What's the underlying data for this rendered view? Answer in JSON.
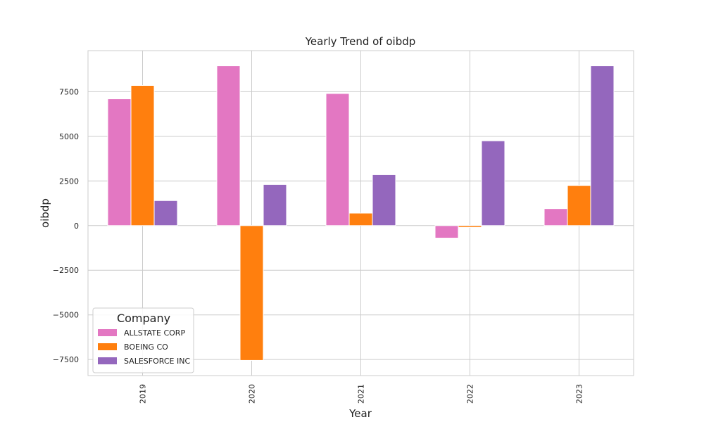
{
  "chart_data": {
    "type": "bar",
    "title": "Yearly Trend of oibdp",
    "xlabel": "Year",
    "ylabel": "oibdp",
    "categories": [
      "2019",
      "2020",
      "2021",
      "2022",
      "2023"
    ],
    "series": [
      {
        "name": "ALLSTATE CORP",
        "color": "#e377c2",
        "values": [
          7100,
          8950,
          7400,
          -700,
          950
        ]
      },
      {
        "name": "BOEING CO",
        "color": "#ff7f0e",
        "values": [
          7850,
          -7550,
          700,
          -100,
          2250
        ]
      },
      {
        "name": "SALESFORCE INC",
        "color": "#9467bd",
        "values": [
          1400,
          2300,
          2850,
          4750,
          8950
        ]
      }
    ],
    "ylim": [
      -8400,
      9800
    ],
    "yticks": [
      -7500,
      -5000,
      -2500,
      0,
      2500,
      5000,
      7500
    ],
    "ytick_labels": [
      "−7500",
      "−5000",
      "−2500",
      "0",
      "2500",
      "5000",
      "7500"
    ],
    "grid": true,
    "legend": {
      "title": "Company",
      "placement": "lower-left"
    }
  }
}
